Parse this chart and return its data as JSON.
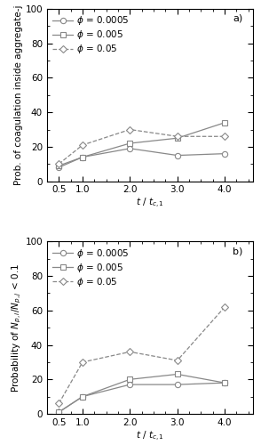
{
  "x": [
    0.5,
    1.0,
    2.0,
    3.0,
    4.0
  ],
  "panel_a": {
    "phi_0005": [
      8,
      14,
      19,
      15,
      16
    ],
    "phi_005": [
      9,
      14,
      22,
      25,
      34
    ],
    "phi_05": [
      10,
      21,
      30,
      26,
      26
    ],
    "ylabel": "Prob. of coagulation inside aggregate-j",
    "xlabel": "$t$ / $t_{c,1}$",
    "ylim": [
      0,
      100
    ],
    "xlim": [
      0.25,
      4.6
    ],
    "label": "a)"
  },
  "panel_b": {
    "phi_0005": [
      1,
      10,
      17,
      17,
      18
    ],
    "phi_005": [
      1,
      10,
      20,
      23,
      18
    ],
    "phi_05": [
      6,
      30,
      36,
      31,
      62
    ],
    "ylabel": "Probability of $N_{p,i}/N_{p,j}$ < 0.1",
    "xlabel": "$t$ / $t_{c,1}$",
    "ylim": [
      0,
      100
    ],
    "xlim": [
      0.25,
      4.6
    ],
    "label": "b)"
  },
  "legend_labels": [
    "$\\phi$ = 0.0005",
    "$\\phi$ = 0.005",
    "$\\phi$ = 0.05"
  ],
  "line_color": "#888888",
  "marker_circle": "o",
  "marker_square": "s",
  "marker_diamond": "D",
  "linestyle_solid": "-",
  "linestyle_dashed": "--",
  "markersize": 4.5,
  "linewidth": 0.9,
  "fontsize": 7.5,
  "tick_fontsize": 7.5,
  "label_fontsize": 8
}
